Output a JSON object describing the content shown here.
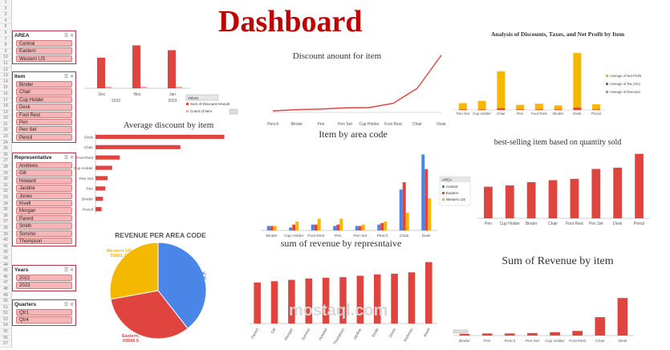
{
  "dashboard_title": "Dashboard",
  "row_numbers": [
    "1",
    "2",
    "3",
    "4",
    "5",
    "6",
    "7",
    "8",
    "9",
    "10",
    "11",
    "12",
    "13",
    "14",
    "15",
    "16",
    "17",
    "18",
    "19",
    "20",
    "21",
    "22",
    "23",
    "24",
    "25",
    "26",
    "27",
    "28",
    "29",
    "30",
    "31",
    "32",
    "33",
    "34",
    "35",
    "36",
    "37",
    "38",
    "39",
    "40",
    "41",
    "42",
    "43",
    "44",
    "45",
    "46",
    "47",
    "48",
    "49",
    "50",
    "51",
    "52",
    "53",
    "54",
    "55",
    "56",
    "57"
  ],
  "slicers": {
    "area": {
      "title": "AREA",
      "items": [
        "Central",
        "Eastern",
        "Western US"
      ]
    },
    "item": {
      "title": "Item",
      "items": [
        "Binder",
        "Chair",
        "Cup Holder",
        "Desk",
        "Foot Rest",
        "Pen",
        "Pen Set",
        "Pencil"
      ]
    },
    "representative": {
      "title": "Representative",
      "items": [
        "Andrews",
        "Gill",
        "Howard",
        "Jardine",
        "Jones",
        "Kivell",
        "Morgan",
        "Parent",
        "Smith",
        "Sorvino",
        "Thompson"
      ]
    },
    "years": {
      "title": "Years",
      "items": [
        "2022",
        "2023"
      ]
    },
    "quarters": {
      "title": "Quarters",
      "items": [
        "Qtr1",
        "Qtr4"
      ]
    }
  },
  "pivot_field_button": "Values",
  "pivot_legend": [
    "Sum of Discount Amount",
    "Count of Item"
  ],
  "colors": {
    "red": "#e0443e",
    "yellow": "#f5b800",
    "blue": "#4a86e8",
    "title_red": "#c00000"
  },
  "watermark": "mostaql.com",
  "chart_data": [
    {
      "id": "discount_count_by_month",
      "type": "bar",
      "title": "",
      "categories": [
        "Dec",
        "Nov",
        "Jan"
      ],
      "group_labels": [
        "2022",
        "2023"
      ],
      "series": [
        {
          "name": "Sum of Discount Amount",
          "values": [
            700,
            980,
            870
          ]
        },
        {
          "name": "Count of Item",
          "values": [
            10,
            12,
            11
          ]
        }
      ],
      "ylim": [
        0,
        1100
      ]
    },
    {
      "id": "discount_amount_for_item",
      "type": "line",
      "title": "Discount anount for item",
      "categories": [
        "Pencil",
        "Binder",
        "Pen",
        "Pen Set",
        "Cup Holder",
        "Foot Rest",
        "Chair",
        "Desk"
      ],
      "values": [
        10,
        18,
        22,
        30,
        32,
        60,
        160,
        380
      ],
      "ylim": [
        0,
        400
      ]
    },
    {
      "id": "analysis_discounts_taxes",
      "type": "bar",
      "title": "Analysis of Discounts, Taxes, and Net Profit by Item",
      "categories": [
        "Pen Set",
        "Cup Holder",
        "Chair",
        "Pen",
        "Foot Rest",
        "Binder",
        "Desk",
        "Pencil"
      ],
      "series": [
        {
          "name": "Average of Net Profit",
          "values": [
            12,
            16,
            68,
            9,
            11,
            8,
            100,
            10
          ]
        },
        {
          "name": "Average of Tax (4%)",
          "values": [
            1,
            1,
            3,
            1,
            1,
            1,
            4,
            1
          ]
        },
        {
          "name": "Average of Discount",
          "values": [
            0.5,
            0.5,
            1,
            0.5,
            0.5,
            0.5,
            1.5,
            0.5
          ]
        }
      ],
      "ylim": [
        0,
        110
      ]
    },
    {
      "id": "average_discount_by_item",
      "type": "bar",
      "orientation": "horizontal",
      "title": "Average discount by item",
      "categories": [
        "Desk",
        "Chair",
        "Foot Rest",
        "Cup Holder",
        "Pen Set",
        "Pen",
        "Binder",
        "Pencil"
      ],
      "values": [
        170,
        112,
        32,
        22,
        16,
        13,
        10,
        8
      ],
      "xlim": [
        0,
        180
      ]
    },
    {
      "id": "item_by_area_code",
      "type": "bar",
      "title": "Item by area code",
      "categories": [
        "Binder",
        "Cup Holder",
        "Foot Rest",
        "Pen",
        "Pen Set",
        "Pencil",
        "Chair",
        "Desk"
      ],
      "series": [
        {
          "name": "Central",
          "values": [
            3,
            2,
            4,
            3,
            3,
            4,
            28,
            52
          ]
        },
        {
          "name": "Eastern",
          "values": [
            3,
            4,
            4,
            4,
            3,
            5,
            33,
            42
          ]
        },
        {
          "name": "Western US",
          "values": [
            3,
            6,
            8,
            8,
            4,
            6,
            12,
            22
          ]
        }
      ],
      "legend_title": "AREA",
      "ylim": [
        0,
        55
      ]
    },
    {
      "id": "best_selling_item",
      "type": "bar",
      "title": "best-selling item based on quantity sold",
      "categories": [
        "Pen",
        "Cup Holder",
        "Binder",
        "Chair",
        "Foot Rest",
        "Pen Set",
        "Desk",
        "Pencil"
      ],
      "values": [
        48,
        50,
        55,
        58,
        60,
        75,
        77,
        98
      ],
      "ylim": [
        0,
        100
      ]
    },
    {
      "id": "revenue_per_area_code",
      "type": "pie",
      "title": "REVENUE PER AREA CODE",
      "labels": [
        "Central",
        "Eastern",
        "Western US"
      ],
      "values": [
        79088.5,
        65666.5,
        55891.71
      ],
      "value_labels": [
        "79088.5",
        "65666.5",
        "55891.71"
      ]
    },
    {
      "id": "sum_of_revenue_by_representative",
      "type": "bar",
      "title": "sum of revenue by represntaive",
      "categories": [
        "Parent",
        "Gill",
        "Morgan",
        "Sorvino",
        "Howard",
        "Thompson",
        "Jardine",
        "Smith",
        "Jones",
        "Andrews",
        "Kivell"
      ],
      "values": [
        60,
        62,
        64,
        66,
        67,
        68,
        70,
        72,
        73,
        75,
        90
      ],
      "ylim": [
        0,
        100
      ]
    },
    {
      "id": "sum_of_revenue_by_item",
      "type": "bar",
      "title": "Sum of Revenue by item",
      "categories": [
        "Binder",
        "Pen",
        "Pencil",
        "Pen Set",
        "Cup Holder",
        "Foot Rest",
        "Chair",
        "Desk"
      ],
      "values": [
        4,
        5,
        5,
        6,
        8,
        11,
        44,
        90
      ],
      "ylim": [
        0,
        100
      ]
    }
  ]
}
